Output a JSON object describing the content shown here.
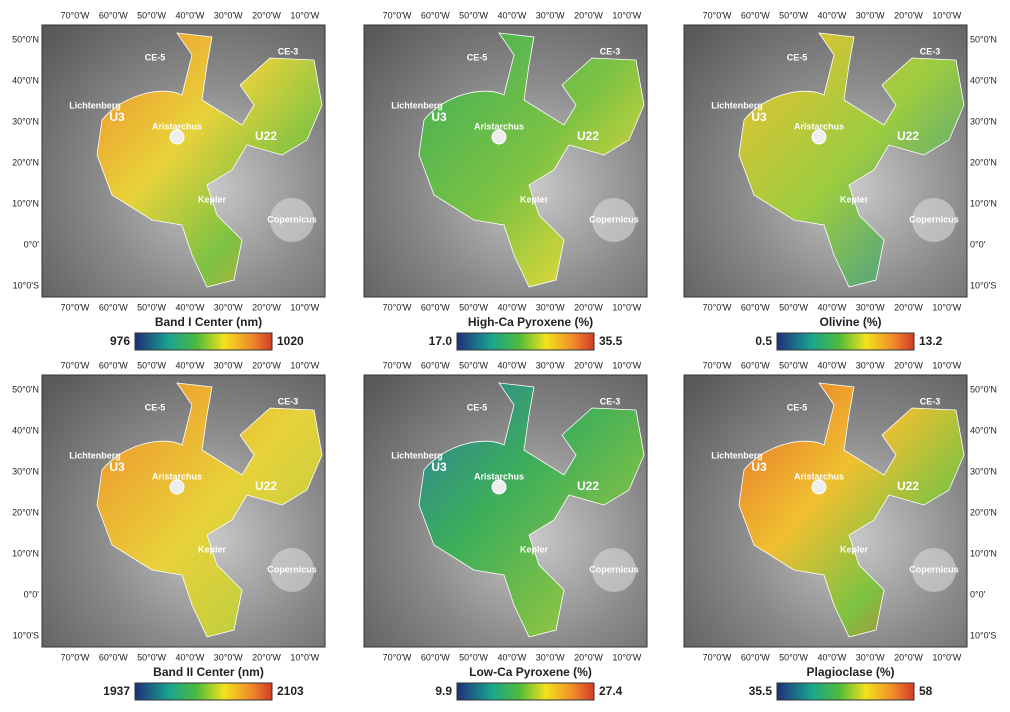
{
  "axes": {
    "lon_labels": [
      "70°0'W",
      "60°0'W",
      "50°0'W",
      "40°0'W",
      "30°0'W",
      "20°0'W",
      "10°0'W"
    ],
    "lat_labels": [
      "50°0'N",
      "40°0'N",
      "30°0'N",
      "20°0'N",
      "10°0'N",
      "0°0'",
      "10°0'S"
    ]
  },
  "places": [
    "CE-5",
    "CE-3",
    "Lichtenberg",
    "U3",
    "Aristarchus",
    "U22",
    "Kepler",
    "Copernicus"
  ],
  "panels": [
    {
      "title": "Band I Center (nm)",
      "min": 976,
      "max": 1020
    },
    {
      "title": "High-Ca Pyroxene (%)",
      "min": {
        "value": 17,
        "label": "17.0"
      },
      "max": 35.5
    },
    {
      "title": "Olivine (%)",
      "min": 0.5,
      "max": 13.2
    },
    {
      "title": "Band II Center (nm)",
      "min": 1937,
      "max": 2103
    },
    {
      "title": "Low-Ca Pyroxene (%)",
      "min": 9.9,
      "max": 27.4
    },
    {
      "title": "Plagioclase (%)",
      "min": 35.5,
      "max": 58
    }
  ]
}
